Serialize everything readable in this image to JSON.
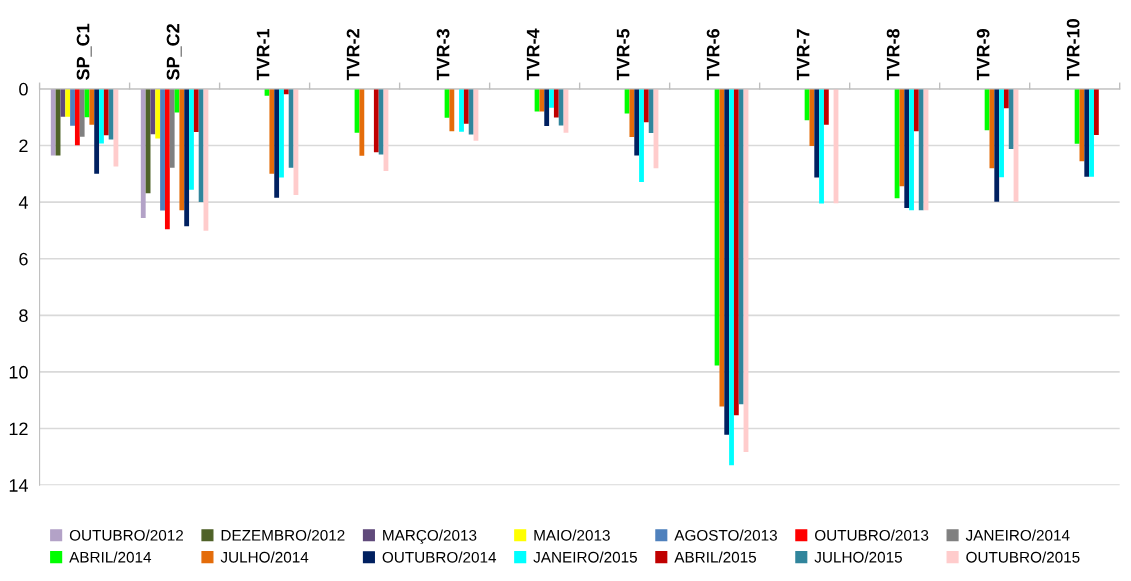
{
  "chart_data": {
    "type": "bar",
    "categories": [
      "SP_C1",
      "SP_C2",
      "TVR-1",
      "TVR-2",
      "TVR-3",
      "TVR-4",
      "TVR-5",
      "TVR-6",
      "TVR-7",
      "TVR-8",
      "TVR-9",
      "TVR-10"
    ],
    "ylim": [
      14,
      0
    ],
    "yticks": [
      0,
      2,
      4,
      6,
      8,
      10,
      12,
      14
    ],
    "grid": "y",
    "legend": "bottom",
    "series": [
      {
        "name": "OUTUBRO/2012",
        "color": "#b3a2c7",
        "values": [
          2.35,
          4.56,
          null,
          null,
          null,
          null,
          null,
          null,
          null,
          null,
          null,
          null
        ]
      },
      {
        "name": "DEZEMBRO/2012",
        "color": "#4f6228",
        "values": [
          2.35,
          3.69,
          null,
          null,
          null,
          null,
          null,
          null,
          null,
          null,
          null,
          null
        ]
      },
      {
        "name": "MARÇO/2013",
        "color": "#604a7b",
        "values": [
          0.98,
          1.6,
          null,
          null,
          null,
          null,
          null,
          null,
          null,
          null,
          null,
          null
        ]
      },
      {
        "name": "MAIO/2013",
        "color": "#ffff00",
        "values": [
          0.98,
          1.75,
          null,
          null,
          null,
          null,
          null,
          null,
          null,
          null,
          null,
          null
        ]
      },
      {
        "name": "AGOSTO/2013",
        "color": "#4f81bd",
        "values": [
          1.3,
          4.3,
          null,
          null,
          null,
          null,
          null,
          null,
          null,
          null,
          null,
          null
        ]
      },
      {
        "name": "OUTUBRO/2013",
        "color": "#ff0000",
        "values": [
          1.99,
          4.96,
          null,
          null,
          null,
          null,
          null,
          null,
          null,
          null,
          null,
          null
        ]
      },
      {
        "name": "JANEIRO/2014",
        "color": "#808080",
        "values": [
          1.69,
          2.79,
          null,
          null,
          null,
          null,
          null,
          null,
          null,
          null,
          null,
          null
        ]
      },
      {
        "name": "ABRIL/2014",
        "color": "#00ff00",
        "values": [
          1.0,
          0.83,
          0.24,
          1.55,
          1.02,
          0.8,
          0.87,
          9.77,
          1.11,
          3.86,
          1.46,
          1.94
        ]
      },
      {
        "name": "JULHO/2014",
        "color": "#e46c0a",
        "values": [
          1.27,
          4.29,
          3.0,
          2.36,
          1.5,
          0.8,
          1.7,
          11.22,
          2.02,
          3.44,
          2.8,
          2.56
        ]
      },
      {
        "name": "OUTUBRO/2014",
        "color": "#002060",
        "values": [
          3.0,
          4.85,
          3.85,
          null,
          null,
          1.31,
          2.35,
          12.22,
          3.13,
          4.21,
          3.99,
          3.1
        ]
      },
      {
        "name": "JANEIRO/2015",
        "color": "#00ffff",
        "values": [
          1.93,
          3.56,
          3.13,
          null,
          1.51,
          0.67,
          3.29,
          13.3,
          4.05,
          4.29,
          3.12,
          3.1
        ]
      },
      {
        "name": "ABRIL/2015",
        "color": "#c00000",
        "values": [
          1.64,
          1.52,
          0.19,
          2.24,
          1.23,
          1.01,
          1.18,
          11.53,
          1.27,
          1.5,
          0.68,
          1.63
        ]
      },
      {
        "name": "JULHO/2015",
        "color": "#31859c",
        "values": [
          1.79,
          4.0,
          2.79,
          2.32,
          1.61,
          1.29,
          1.56,
          11.14,
          null,
          4.29,
          2.12,
          null
        ]
      },
      {
        "name": "OUTUBRO/2015",
        "color": "#ffcccc",
        "values": [
          2.74,
          5.01,
          3.75,
          2.9,
          1.83,
          1.55,
          2.8,
          12.83,
          4.04,
          4.29,
          3.99,
          null
        ]
      }
    ]
  }
}
